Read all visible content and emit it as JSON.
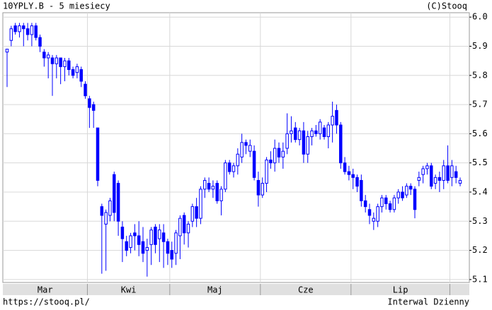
{
  "chart_data": {
    "type": "candlestick",
    "title": "10YPLY.B - 5 miesiecy",
    "source": "(C)Stooq",
    "footer_left": "https://stooq.pl/",
    "footer_right": "Interwal Dzienny",
    "color": "#0000ff",
    "ylim": [
      5.09,
      6.015
    ],
    "yticks": [
      {
        "value": 6,
        "label": "6.0"
      },
      5.9,
      5.8,
      5.7,
      5.6,
      5.5,
      5.4,
      5.3,
      5.2,
      5.1
    ],
    "grid": true,
    "months": [
      "Mar",
      "Kwi",
      "Maj",
      "Cze",
      "Lip"
    ],
    "month_starts": [
      20,
      40,
      62,
      84,
      108
    ],
    "open": [
      5.88,
      5.92,
      5.97,
      5.95,
      5.97,
      5.96,
      5.94,
      5.97,
      5.93,
      5.88,
      5.86,
      5.86,
      5.84,
      5.86,
      5.83,
      5.85,
      5.82,
      5.81,
      5.82,
      5.77,
      5.72,
      5.7,
      5.62,
      5.35,
      5.29,
      5.32,
      5.46,
      5.43,
      5.28,
      5.23,
      5.21,
      5.26,
      5.25,
      5.23,
      5.2,
      5.22,
      5.28,
      5.24,
      5.26,
      5.23,
      5.2,
      5.19,
      5.25,
      5.32,
      5.26,
      5.3,
      5.35,
      5.31,
      5.41,
      5.43,
      5.41,
      5.43,
      5.37,
      5.41,
      5.5,
      5.47,
      5.49,
      5.52,
      5.57,
      5.54,
      5.54,
      5.44,
      5.39,
      5.43,
      5.51,
      5.5,
      5.55,
      5.52,
      5.55,
      5.6,
      5.62,
      5.58,
      5.61,
      5.53,
      5.59,
      5.61,
      5.6,
      5.62,
      5.59,
      5.63,
      5.68,
      5.63,
      5.5,
      5.47,
      5.46,
      5.45,
      5.44,
      5.37,
      5.34,
      5.3,
      5.3,
      5.35,
      5.38,
      5.36,
      5.34,
      5.38,
      5.4,
      5.39,
      5.42,
      5.41,
      5.44,
      5.46,
      5.48,
      5.49,
      5.43,
      5.45,
      5.44,
      5.49,
      5.45,
      5.47,
      5.43
    ],
    "high": [
      5.89,
      5.97,
      5.98,
      5.98,
      5.98,
      5.98,
      5.98,
      5.98,
      5.94,
      5.89,
      5.88,
      5.87,
      5.87,
      5.86,
      5.86,
      5.86,
      5.83,
      5.84,
      5.83,
      5.78,
      5.73,
      5.71,
      5.62,
      5.36,
      5.34,
      5.38,
      5.47,
      5.44,
      5.3,
      5.25,
      5.26,
      5.29,
      5.3,
      5.28,
      5.24,
      5.28,
      5.29,
      5.29,
      5.29,
      5.24,
      5.23,
      5.27,
      5.32,
      5.33,
      5.3,
      5.36,
      5.38,
      5.42,
      5.45,
      5.45,
      5.44,
      5.44,
      5.42,
      5.51,
      5.51,
      5.5,
      5.55,
      5.6,
      5.58,
      5.58,
      5.56,
      5.47,
      5.45,
      5.52,
      5.54,
      5.58,
      5.57,
      5.57,
      5.67,
      5.66,
      5.64,
      5.62,
      5.64,
      5.61,
      5.62,
      5.63,
      5.65,
      5.63,
      5.64,
      5.71,
      5.7,
      5.64,
      5.52,
      5.49,
      5.48,
      5.46,
      5.46,
      5.39,
      5.36,
      5.33,
      5.36,
      5.39,
      5.39,
      5.37,
      5.39,
      5.41,
      5.42,
      5.43,
      5.43,
      5.42,
      5.47,
      5.49,
      5.5,
      5.5,
      5.46,
      5.47,
      5.51,
      5.56,
      5.51,
      5.49,
      5.45
    ],
    "low": [
      5.76,
      5.9,
      5.94,
      5.93,
      5.9,
      5.92,
      5.9,
      5.92,
      5.88,
      5.83,
      5.79,
      5.73,
      5.79,
      5.77,
      5.78,
      5.8,
      5.79,
      5.79,
      5.76,
      5.72,
      5.62,
      5.62,
      5.42,
      5.12,
      5.13,
      5.3,
      5.3,
      5.25,
      5.16,
      5.18,
      5.19,
      5.2,
      5.18,
      5.16,
      5.11,
      5.15,
      5.19,
      5.16,
      5.14,
      5.15,
      5.14,
      5.15,
      5.17,
      5.22,
      5.21,
      5.28,
      5.28,
      5.29,
      5.38,
      5.4,
      5.38,
      5.36,
      5.32,
      5.4,
      5.46,
      5.45,
      5.46,
      5.5,
      5.53,
      5.52,
      5.44,
      5.35,
      5.38,
      5.4,
      5.48,
      5.47,
      5.5,
      5.48,
      5.53,
      5.57,
      5.57,
      5.56,
      5.5,
      5.5,
      5.56,
      5.59,
      5.58,
      5.58,
      5.55,
      5.57,
      5.6,
      5.48,
      5.46,
      5.44,
      5.41,
      5.4,
      5.35,
      5.33,
      5.29,
      5.27,
      5.28,
      5.33,
      5.34,
      5.33,
      5.33,
      5.36,
      5.37,
      5.38,
      5.39,
      5.31,
      5.42,
      5.43,
      5.46,
      5.41,
      5.41,
      5.4,
      5.41,
      5.43,
      5.42,
      5.43,
      5.42
    ],
    "close": [
      5.89,
      5.96,
      5.95,
      5.97,
      5.96,
      5.94,
      5.97,
      5.93,
      5.9,
      5.86,
      5.87,
      5.84,
      5.86,
      5.83,
      5.85,
      5.82,
      5.8,
      5.83,
      5.78,
      5.73,
      5.69,
      5.68,
      5.44,
      5.32,
      5.33,
      5.37,
      5.33,
      5.3,
      5.24,
      5.2,
      5.25,
      5.25,
      5.22,
      5.19,
      5.21,
      5.27,
      5.22,
      5.27,
      5.23,
      5.19,
      5.17,
      5.26,
      5.31,
      5.26,
      5.29,
      5.35,
      5.31,
      5.41,
      5.44,
      5.41,
      5.42,
      5.37,
      5.41,
      5.5,
      5.47,
      5.49,
      5.53,
      5.57,
      5.56,
      5.56,
      5.45,
      5.39,
      5.43,
      5.51,
      5.5,
      5.55,
      5.52,
      5.54,
      5.6,
      5.61,
      5.58,
      5.61,
      5.53,
      5.59,
      5.61,
      5.6,
      5.64,
      5.59,
      5.63,
      5.66,
      5.63,
      5.5,
      5.47,
      5.46,
      5.45,
      5.42,
      5.37,
      5.35,
      5.32,
      5.31,
      5.35,
      5.38,
      5.36,
      5.34,
      5.38,
      5.4,
      5.38,
      5.42,
      5.41,
      5.34,
      5.45,
      5.48,
      5.49,
      5.42,
      5.45,
      5.44,
      5.49,
      5.44,
      5.49,
      5.45,
      5.44
    ]
  }
}
